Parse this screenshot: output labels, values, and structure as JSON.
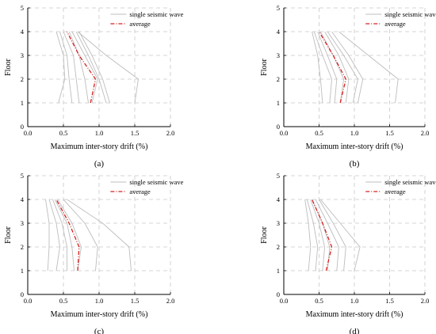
{
  "figure": {
    "legend": {
      "single": "single seismic wave",
      "average": "average"
    }
  },
  "colors": {
    "single": "#bdbdbd",
    "average": "#d62020",
    "grid": "#c8c8c8",
    "axis": "#000000"
  },
  "chart_data": [
    {
      "type": "line",
      "panel_label": "(a)",
      "xlabel": "Maximum inter-story drift (%)",
      "ylabel": "Floor",
      "xlim": [
        0,
        2.0
      ],
      "ylim": [
        0,
        5
      ],
      "xticks": [
        "0.0",
        "0.5",
        "1.0",
        "1.5",
        "2.0"
      ],
      "yticks": [
        "0",
        "1",
        "2",
        "3",
        "4",
        "5"
      ],
      "grid": true,
      "legend_position": "top-right",
      "floors": [
        1,
        2,
        3,
        4
      ],
      "series": [
        {
          "values": [
            0.43,
            0.52,
            0.5,
            0.4
          ]
        },
        {
          "values": [
            0.62,
            0.58,
            0.55,
            0.45
          ]
        },
        {
          "values": [
            0.72,
            0.68,
            0.64,
            0.5
          ]
        },
        {
          "values": [
            0.85,
            0.8,
            0.72,
            0.58
          ]
        },
        {
          "values": [
            0.9,
            0.98,
            0.8,
            0.62
          ]
        },
        {
          "values": [
            1.1,
            1.0,
            0.85,
            0.68
          ]
        },
        {
          "values": [
            1.15,
            1.05,
            0.9,
            0.72
          ]
        },
        {
          "values": [
            1.5,
            1.55,
            1.1,
            0.7
          ]
        },
        {
          "name": "average",
          "values": [
            0.88,
            0.95,
            0.72,
            0.55
          ]
        }
      ]
    },
    {
      "type": "line",
      "panel_label": "(b)",
      "xlabel": "Maximum inter-story drift (%)",
      "ylabel": "Floor",
      "xlim": [
        0,
        2.0
      ],
      "ylim": [
        0,
        5
      ],
      "xticks": [
        "0.0",
        "0.5",
        "1.0",
        "1.5",
        "2.0"
      ],
      "yticks": [
        "0",
        "1",
        "2",
        "3",
        "4",
        "5"
      ],
      "grid": true,
      "legend_position": "top-right",
      "floors": [
        1,
        2,
        3,
        4
      ],
      "series": [
        {
          "values": [
            0.55,
            0.52,
            0.48,
            0.4
          ]
        },
        {
          "values": [
            0.65,
            0.68,
            0.55,
            0.43
          ]
        },
        {
          "values": [
            0.72,
            0.75,
            0.62,
            0.48
          ]
        },
        {
          "values": [
            0.8,
            0.85,
            0.7,
            0.52
          ]
        },
        {
          "values": [
            0.88,
            0.92,
            0.78,
            0.58
          ]
        },
        {
          "values": [
            0.98,
            1.05,
            0.85,
            0.62
          ]
        },
        {
          "values": [
            1.05,
            1.12,
            0.92,
            0.68
          ]
        },
        {
          "values": [
            1.58,
            1.62,
            1.2,
            0.78
          ]
        },
        {
          "name": "average",
          "values": [
            0.8,
            0.88,
            0.7,
            0.5
          ]
        }
      ]
    },
    {
      "type": "line",
      "panel_label": "(c)",
      "xlabel": "Maximum inter-story drift (%)",
      "ylabel": "Floor",
      "xlim": [
        0,
        2.0
      ],
      "ylim": [
        0,
        5
      ],
      "xticks": [
        "0.0",
        "0.5",
        "1.0",
        "1.5",
        "2.0"
      ],
      "yticks": [
        "0",
        "1",
        "2",
        "3",
        "4",
        "5"
      ],
      "grid": true,
      "legend_position": "top-right",
      "floors": [
        1,
        2,
        3,
        4
      ],
      "series": [
        {
          "values": [
            0.28,
            0.3,
            0.3,
            0.25
          ]
        },
        {
          "values": [
            0.4,
            0.45,
            0.4,
            0.3
          ]
        },
        {
          "values": [
            0.55,
            0.55,
            0.48,
            0.35
          ]
        },
        {
          "values": [
            0.65,
            0.62,
            0.55,
            0.38
          ]
        },
        {
          "values": [
            0.7,
            0.75,
            0.62,
            0.42
          ]
        },
        {
          "values": [
            0.95,
            0.98,
            0.8,
            0.5
          ]
        },
        {
          "values": [
            1.45,
            1.42,
            1.05,
            0.55
          ]
        },
        {
          "name": "average",
          "values": [
            0.7,
            0.72,
            0.58,
            0.4
          ]
        }
      ]
    },
    {
      "type": "line",
      "panel_label": "(d)",
      "xlabel": "Maximum inter-story drift (%)",
      "ylabel": "Floor",
      "xlim": [
        0,
        2.0
      ],
      "ylim": [
        0,
        5
      ],
      "xticks": [
        "0.0",
        "0.5",
        "1.0",
        "1.5",
        "2.0"
      ],
      "yticks": [
        "0",
        "1",
        "2",
        "3",
        "4",
        "5"
      ],
      "grid": true,
      "legend_position": "top-right",
      "floors": [
        1,
        2,
        3,
        4
      ],
      "series": [
        {
          "values": [
            0.35,
            0.38,
            0.35,
            0.3
          ]
        },
        {
          "values": [
            0.45,
            0.48,
            0.42,
            0.33
          ]
        },
        {
          "values": [
            0.55,
            0.58,
            0.5,
            0.38
          ]
        },
        {
          "values": [
            0.62,
            0.65,
            0.55,
            0.4
          ]
        },
        {
          "values": [
            0.75,
            0.78,
            0.62,
            0.45
          ]
        },
        {
          "values": [
            0.85,
            0.88,
            0.7,
            0.5
          ]
        },
        {
          "values": [
            1.0,
            1.08,
            0.8,
            0.52
          ]
        },
        {
          "name": "average",
          "values": [
            0.6,
            0.68,
            0.55,
            0.4
          ]
        }
      ]
    }
  ]
}
